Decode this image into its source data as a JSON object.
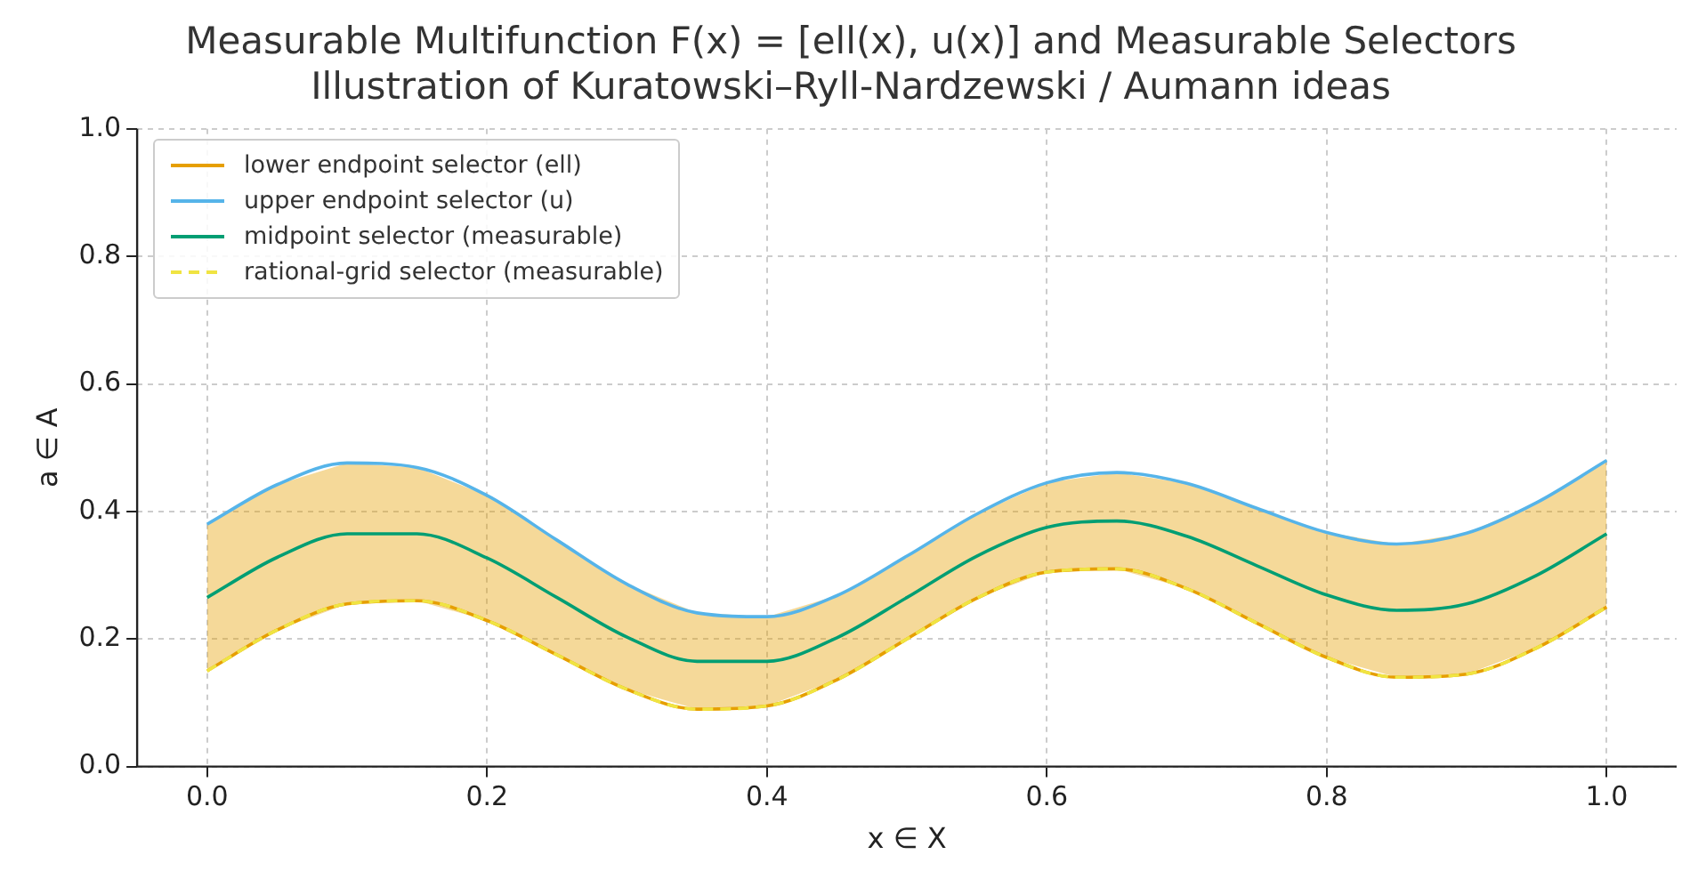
{
  "chart_data": {
    "type": "line",
    "title": "Measurable Multifunction F(x) = [ell(x), u(x)] and Measurable Selectors",
    "subtitle": "Illustration of Kuratowski–Ryll-Nardzewski / Aumann ideas",
    "xlabel": "x ∈ X",
    "ylabel": "a ∈ A",
    "x": [
      0,
      0.05,
      0.1,
      0.15,
      0.2,
      0.25,
      0.3,
      0.35,
      0.4,
      0.45,
      0.5,
      0.55,
      0.6,
      0.65,
      0.7,
      0.75,
      0.8,
      0.85,
      0.9,
      0.95,
      1
    ],
    "series": [
      {
        "name": "lower endpoint selector (ell)",
        "color": "#e69f00",
        "values": [
          0.15,
          0.214,
          0.255,
          0.26,
          0.229,
          0.175,
          0.121,
          0.09,
          0.095,
          0.136,
          0.2,
          0.264,
          0.305,
          0.31,
          0.279,
          0.225,
          0.171,
          0.14,
          0.145,
          0.186,
          0.25
        ],
        "lower": [
          0.15,
          0.214,
          0.255,
          0.26,
          0.229,
          0.175,
          0.121,
          0.09,
          0.095,
          0.136,
          0.2,
          0.264,
          0.305,
          0.31,
          0.279,
          0.225,
          0.171,
          0.14,
          0.145,
          0.186,
          0.25
        ],
        "upper": [
          0.38,
          0.442,
          0.476,
          0.469,
          0.425,
          0.355,
          0.286,
          0.241,
          0.235,
          0.268,
          0.33,
          0.396,
          0.445,
          0.461,
          0.444,
          0.405,
          0.367,
          0.349,
          0.366,
          0.414,
          0.48
        ]
      },
      {
        "name": "upper endpoint selector (u)",
        "color": "#56b4e9",
        "values": [
          0.38,
          0.442,
          0.476,
          0.469,
          0.425,
          0.355,
          0.286,
          0.241,
          0.235,
          0.268,
          0.33,
          0.396,
          0.445,
          0.461,
          0.444,
          0.405,
          0.367,
          0.349,
          0.366,
          0.414,
          0.48
        ]
      },
      {
        "name": "midpoint selector (measurable)",
        "color": "#009e73",
        "values": [
          0.265,
          0.328,
          0.365,
          0.365,
          0.327,
          0.265,
          0.203,
          0.165,
          0.165,
          0.202,
          0.265,
          0.33,
          0.375,
          0.385,
          0.361,
          0.315,
          0.269,
          0.245,
          0.255,
          0.3,
          0.365
        ]
      },
      {
        "name": "rational-grid selector (measurable)",
        "color": "#f0e442",
        "line_style": "dashed",
        "values": [
          0.15,
          0.214,
          0.255,
          0.26,
          0.229,
          0.175,
          0.121,
          0.09,
          0.095,
          0.136,
          0.2,
          0.264,
          0.305,
          0.31,
          0.279,
          0.225,
          0.171,
          0.14,
          0.145,
          0.186,
          0.25
        ]
      }
    ],
    "xlim": [
      -0.05,
      1.05
    ],
    "xticks": [
      {
        "value": 0,
        "label": "0.0"
      },
      {
        "value": 0.2,
        "label": "0.2"
      },
      {
        "value": 0.4,
        "label": "0.4"
      },
      {
        "value": 0.6,
        "label": "0.6"
      },
      {
        "value": 0.8,
        "label": "0.8"
      },
      {
        "value": 1,
        "label": "1.0"
      }
    ],
    "ylim": [
      0,
      1
    ],
    "yticks": [
      {
        "value": 0,
        "label": "0.0"
      },
      {
        "value": 0.2,
        "label": "0.2"
      },
      {
        "value": 0.4,
        "label": "0.4"
      },
      {
        "value": 0.6,
        "label": "0.6"
      },
      {
        "value": 0.8,
        "label": "0.8"
      },
      {
        "value": 1,
        "label": "1.0"
      }
    ],
    "grid": true,
    "legend": "top left",
    "marker": "none"
  }
}
